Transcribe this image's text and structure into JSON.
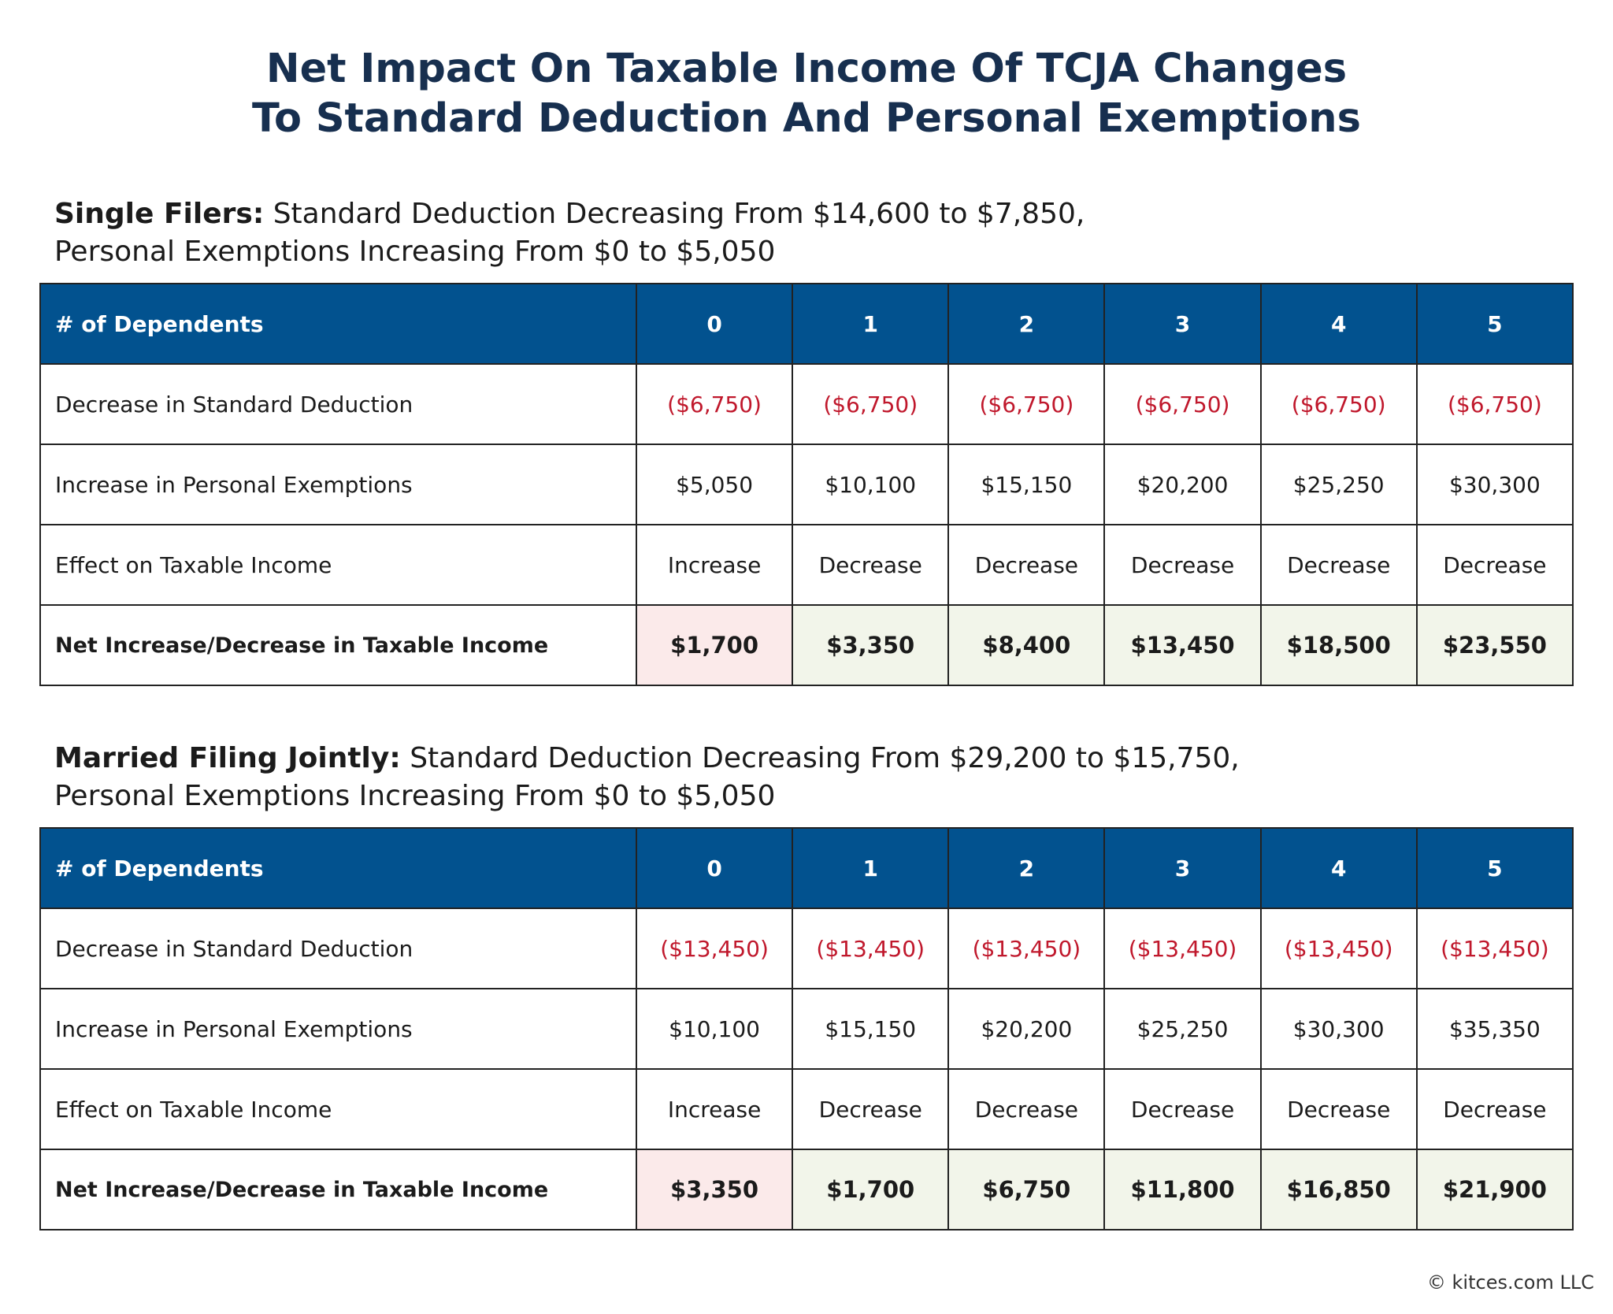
{
  "title": [
    "Net Impact On Taxable Income Of TCJA Changes",
    "To Standard Deduction And Personal Exemptions"
  ],
  "sections": [
    {
      "heading": {
        "bold": "Single Filers:",
        "text": "Standard Deduction Decreasing From $14,600 to $7,850,",
        "line2": "Personal Exemptions Increasing From $0 to $5,050"
      },
      "table": {
        "header": [
          "# of Dependents",
          "0",
          "1",
          "2",
          "3",
          "4",
          "5"
        ],
        "rows": [
          [
            "Decrease in Standard Deduction",
            "($6,750)",
            "($6,750)",
            "($6,750)",
            "($6,750)",
            "($6,750)",
            "($6,750)"
          ],
          [
            "Increase in Personal Exemptions",
            "$5,050",
            "$10,100",
            "$15,150",
            "$20,200",
            "$25,250",
            "$30,300"
          ],
          [
            "Effect on Taxable Income",
            "Increase",
            "Decrease",
            "Decrease",
            "Decrease",
            "Decrease",
            "Decrease"
          ],
          [
            "Net Increase/Decrease in Taxable Income",
            "$1,700",
            "$3,350",
            "$8,400",
            "$13,450",
            "$18,500",
            "$23,550"
          ]
        ]
      }
    },
    {
      "heading": {
        "bold": "Married Filing Jointly:",
        "text": "Standard Deduction Decreasing From $29,200 to $15,750,",
        "line2": "Personal Exemptions Increasing From $0 to $5,050"
      },
      "table": {
        "header": [
          "# of Dependents",
          "0",
          "1",
          "2",
          "3",
          "4",
          "5"
        ],
        "rows": [
          [
            "Decrease in Standard Deduction",
            "($13,450)",
            "($13,450)",
            "($13,450)",
            "($13,450)",
            "($13,450)",
            "($13,450)"
          ],
          [
            "Increase in Personal Exemptions",
            "$10,100",
            "$15,150",
            "$20,200",
            "$25,250",
            "$30,300",
            "$35,350"
          ],
          [
            "Effect on Taxable Income",
            "Increase",
            "Decrease",
            "Decrease",
            "Decrease",
            "Decrease",
            "Decrease"
          ],
          [
            "Net Increase/Decrease in Taxable Income",
            "$3,350",
            "$1,700",
            "$6,750",
            "$11,800",
            "$16,850",
            "$21,900"
          ]
        ]
      }
    }
  ],
  "footer": "© kitces.com LLC"
}
